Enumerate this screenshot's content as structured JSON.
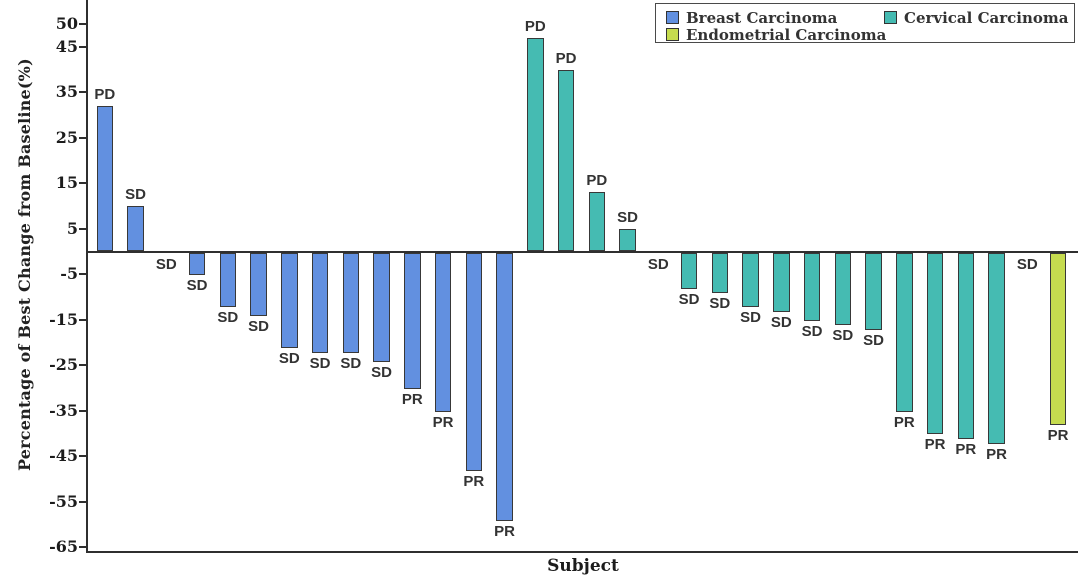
{
  "chart_data": {
    "type": "bar",
    "subtype": "waterfall-best-change",
    "title": "",
    "xlabel": "Subject",
    "ylabel": "Percentage of Best Change from Baseline(%)",
    "ylim": [
      -67,
      55
    ],
    "yticks": [
      50,
      45,
      35,
      25,
      15,
      5,
      -5,
      -15,
      -25,
      -35,
      -45,
      -55,
      -65
    ],
    "grid": false,
    "legend_position": "top-right",
    "bar_outline_color": "#383838",
    "axis_color": "#2f2f2f",
    "series": [
      {
        "name": "Breast Carcinoma",
        "color": "#6290E0",
        "points": [
          {
            "value": 32,
            "label": "PD"
          },
          {
            "value": 10,
            "label": "SD"
          },
          {
            "value": 0,
            "label": "SD"
          },
          {
            "value": -5,
            "label": "SD"
          },
          {
            "value": -12,
            "label": "SD"
          },
          {
            "value": -14,
            "label": "SD"
          },
          {
            "value": -21,
            "label": "SD"
          },
          {
            "value": -22,
            "label": "SD"
          },
          {
            "value": -22,
            "label": "SD"
          },
          {
            "value": -24,
            "label": "SD"
          },
          {
            "value": -30,
            "label": "PR"
          },
          {
            "value": -35,
            "label": "PR"
          },
          {
            "value": -48,
            "label": "PR"
          },
          {
            "value": -59,
            "label": "PR"
          }
        ]
      },
      {
        "name": "Cervical Carcinoma",
        "color": "#45BBB2",
        "points": [
          {
            "value": 47,
            "label": "PD"
          },
          {
            "value": 40,
            "label": "PD"
          },
          {
            "value": 13,
            "label": "PD"
          },
          {
            "value": 5,
            "label": "SD"
          },
          {
            "value": 0,
            "label": "SD"
          },
          {
            "value": -8,
            "label": "SD"
          },
          {
            "value": -9,
            "label": "SD"
          },
          {
            "value": -12,
            "label": "SD"
          },
          {
            "value": -13,
            "label": "SD"
          },
          {
            "value": -15,
            "label": "SD"
          },
          {
            "value": -16,
            "label": "SD"
          },
          {
            "value": -17,
            "label": "SD"
          },
          {
            "value": -35,
            "label": "PR"
          },
          {
            "value": -40,
            "label": "PR"
          },
          {
            "value": -41,
            "label": "PR"
          },
          {
            "value": -42,
            "label": "PR"
          }
        ]
      },
      {
        "name": "Endometrial Carcinoma",
        "color": "#C6DC4F",
        "points": [
          {
            "value": 0,
            "label": "SD"
          },
          {
            "value": -38,
            "label": "PR"
          }
        ]
      }
    ]
  }
}
